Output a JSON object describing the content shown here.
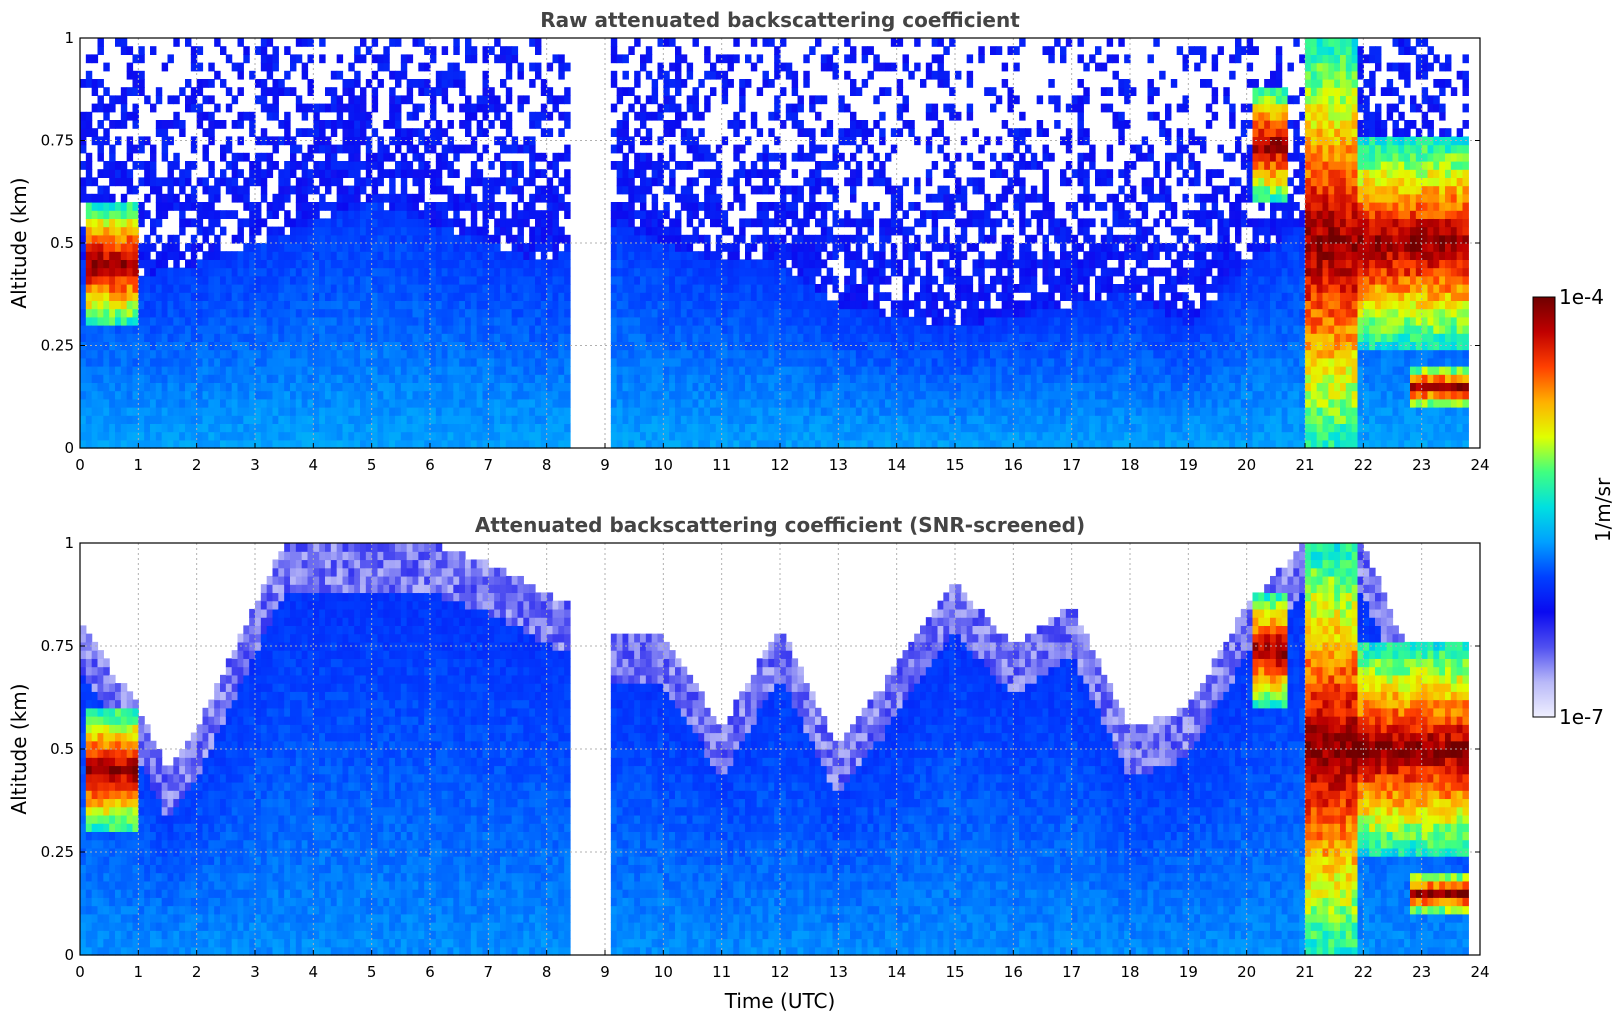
{
  "chart_data": [
    {
      "type": "heatmap",
      "title": "Raw attenuated backscattering coefficient",
      "xlabel": "",
      "ylabel": "Altitude (km)",
      "xlim": [
        0,
        24
      ],
      "ylim": [
        0,
        1
      ],
      "x_ticks": [
        "0",
        "1",
        "2",
        "3",
        "4",
        "5",
        "6",
        "7",
        "8",
        "9",
        "10",
        "11",
        "12",
        "13",
        "14",
        "15",
        "16",
        "17",
        "18",
        "19",
        "20",
        "21",
        "22",
        "23",
        "24"
      ],
      "y_ticks": [
        "0",
        "0.25",
        "0.5",
        "0.75",
        "1"
      ],
      "grid": true,
      "screened": false,
      "data_gap_hours": [
        8.45,
        9.05
      ],
      "data_end_hour": 23.8,
      "aerosol_top_km": [
        [
          0,
          0.45
        ],
        [
          0.6,
          0.5
        ],
        [
          1,
          0.42
        ],
        [
          2,
          0.45
        ],
        [
          3,
          0.5
        ],
        [
          4,
          0.55
        ],
        [
          5,
          0.6
        ],
        [
          6,
          0.55
        ],
        [
          7,
          0.5
        ],
        [
          8,
          0.45
        ],
        [
          9.1,
          0.55
        ],
        [
          10,
          0.5
        ],
        [
          11,
          0.45
        ],
        [
          12,
          0.45
        ],
        [
          13,
          0.35
        ],
        [
          14,
          0.32
        ],
        [
          15,
          0.3
        ],
        [
          16,
          0.32
        ],
        [
          17,
          0.35
        ],
        [
          18,
          0.38
        ],
        [
          19,
          0.3
        ],
        [
          20,
          0.45
        ],
        [
          21,
          0.55
        ],
        [
          22,
          0.6
        ],
        [
          23,
          0.55
        ],
        [
          23.8,
          0.5
        ]
      ],
      "cloud_layers": [
        {
          "x_start": 0.1,
          "x_end": 1.0,
          "base_km": 0.3,
          "top_km": 0.6
        },
        {
          "x_start": 20.1,
          "x_end": 20.7,
          "base_km": 0.6,
          "top_km": 0.88
        },
        {
          "x_start": 21.0,
          "x_end": 21.9,
          "base_km": 0.0,
          "top_km": 1.0
        },
        {
          "x_start": 21.9,
          "x_end": 23.8,
          "base_km": 0.25,
          "top_km": 0.75
        },
        {
          "x_start": 22.8,
          "x_end": 23.8,
          "base_km": 0.1,
          "top_km": 0.2
        }
      ]
    },
    {
      "type": "heatmap",
      "title": "Attenuated backscattering coefficient (SNR-screened)",
      "xlabel": "Time (UTC)",
      "ylabel": "Altitude (km)",
      "xlim": [
        0,
        24
      ],
      "ylim": [
        0,
        1
      ],
      "x_ticks": [
        "0",
        "1",
        "2",
        "3",
        "4",
        "5",
        "6",
        "7",
        "8",
        "9",
        "10",
        "11",
        "12",
        "13",
        "14",
        "15",
        "16",
        "17",
        "18",
        "19",
        "20",
        "21",
        "22",
        "23",
        "24"
      ],
      "y_ticks": [
        "0",
        "0.25",
        "0.5",
        "0.75",
        "1"
      ],
      "grid": true,
      "screened": true,
      "data_gap_hours": [
        8.45,
        9.05
      ],
      "data_end_hour": 23.8,
      "valid_top_km": [
        [
          0,
          0.8
        ],
        [
          1,
          0.6
        ],
        [
          1.5,
          0.45
        ],
        [
          2,
          0.55
        ],
        [
          3,
          0.85
        ],
        [
          3.5,
          1.0
        ],
        [
          5,
          1.0
        ],
        [
          6,
          1.0
        ],
        [
          7,
          0.95
        ],
        [
          8.4,
          0.85
        ],
        [
          9.1,
          0.78
        ],
        [
          10,
          0.78
        ],
        [
          11,
          0.55
        ],
        [
          12,
          0.8
        ],
        [
          13,
          0.5
        ],
        [
          14,
          0.7
        ],
        [
          15,
          0.9
        ],
        [
          16,
          0.75
        ],
        [
          17,
          0.85
        ],
        [
          18,
          0.55
        ],
        [
          19,
          0.6
        ],
        [
          20,
          0.85
        ],
        [
          21,
          1.0
        ],
        [
          22,
          1.0
        ],
        [
          23,
          0.65
        ],
        [
          23.8,
          0.52
        ]
      ],
      "cloud_layers": [
        {
          "x_start": 0.1,
          "x_end": 1.0,
          "base_km": 0.3,
          "top_km": 0.6
        },
        {
          "x_start": 20.1,
          "x_end": 20.7,
          "base_km": 0.6,
          "top_km": 0.88
        },
        {
          "x_start": 21.0,
          "x_end": 21.9,
          "base_km": 0.0,
          "top_km": 1.0
        },
        {
          "x_start": 21.9,
          "x_end": 23.8,
          "base_km": 0.25,
          "top_km": 0.75
        },
        {
          "x_start": 22.8,
          "x_end": 23.8,
          "base_km": 0.1,
          "top_km": 0.2
        }
      ]
    }
  ],
  "colorbar": {
    "label": "1/m/sr",
    "max_label": "1e-4",
    "min_label": "1e-7",
    "scale": "log",
    "range": [
      1e-07,
      0.0001
    ],
    "colormap": [
      "#f0f0ff",
      "#b8b8f8",
      "#5050f0",
      "#0a0af0",
      "#0040ff",
      "#00a0ff",
      "#00e0e0",
      "#40ff80",
      "#e0ff00",
      "#ffb000",
      "#ff4000",
      "#c00000",
      "#700000"
    ]
  }
}
